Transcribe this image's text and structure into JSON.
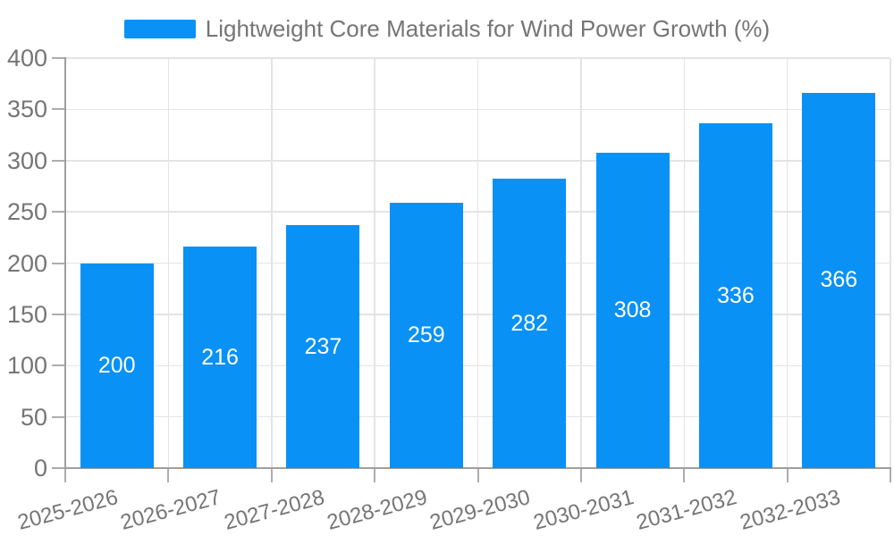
{
  "legend": {
    "label": "Lightweight Core Materials for Wind Power Growth (%)"
  },
  "chart_data": {
    "type": "bar",
    "title": "Lightweight Core Materials for Wind Power Growth (%)",
    "categories": [
      "2025-2026",
      "2026-2027",
      "2027-2028",
      "2028-2029",
      "2029-2030",
      "2030-2031",
      "2031-2032",
      "2032-2033"
    ],
    "values": [
      200,
      216,
      237,
      259,
      282,
      308,
      336,
      366
    ],
    "value_labels": [
      "200",
      "216",
      "237",
      "259",
      "282",
      "308",
      "336",
      "366"
    ],
    "xlabel": "",
    "ylabel": "",
    "ylim": [
      0,
      400
    ],
    "ytick_step": 50,
    "grid": true,
    "legend_position": "top-center",
    "value_label_position": "inside-center",
    "colors": {
      "bar": "#0991f5",
      "value_label": "#ffffff",
      "axis_text": "#757575",
      "grid_line": "#e4e4e4",
      "axis_line": "#9e9e9e",
      "tick": "#adadad",
      "background": "#ffffff"
    }
  }
}
